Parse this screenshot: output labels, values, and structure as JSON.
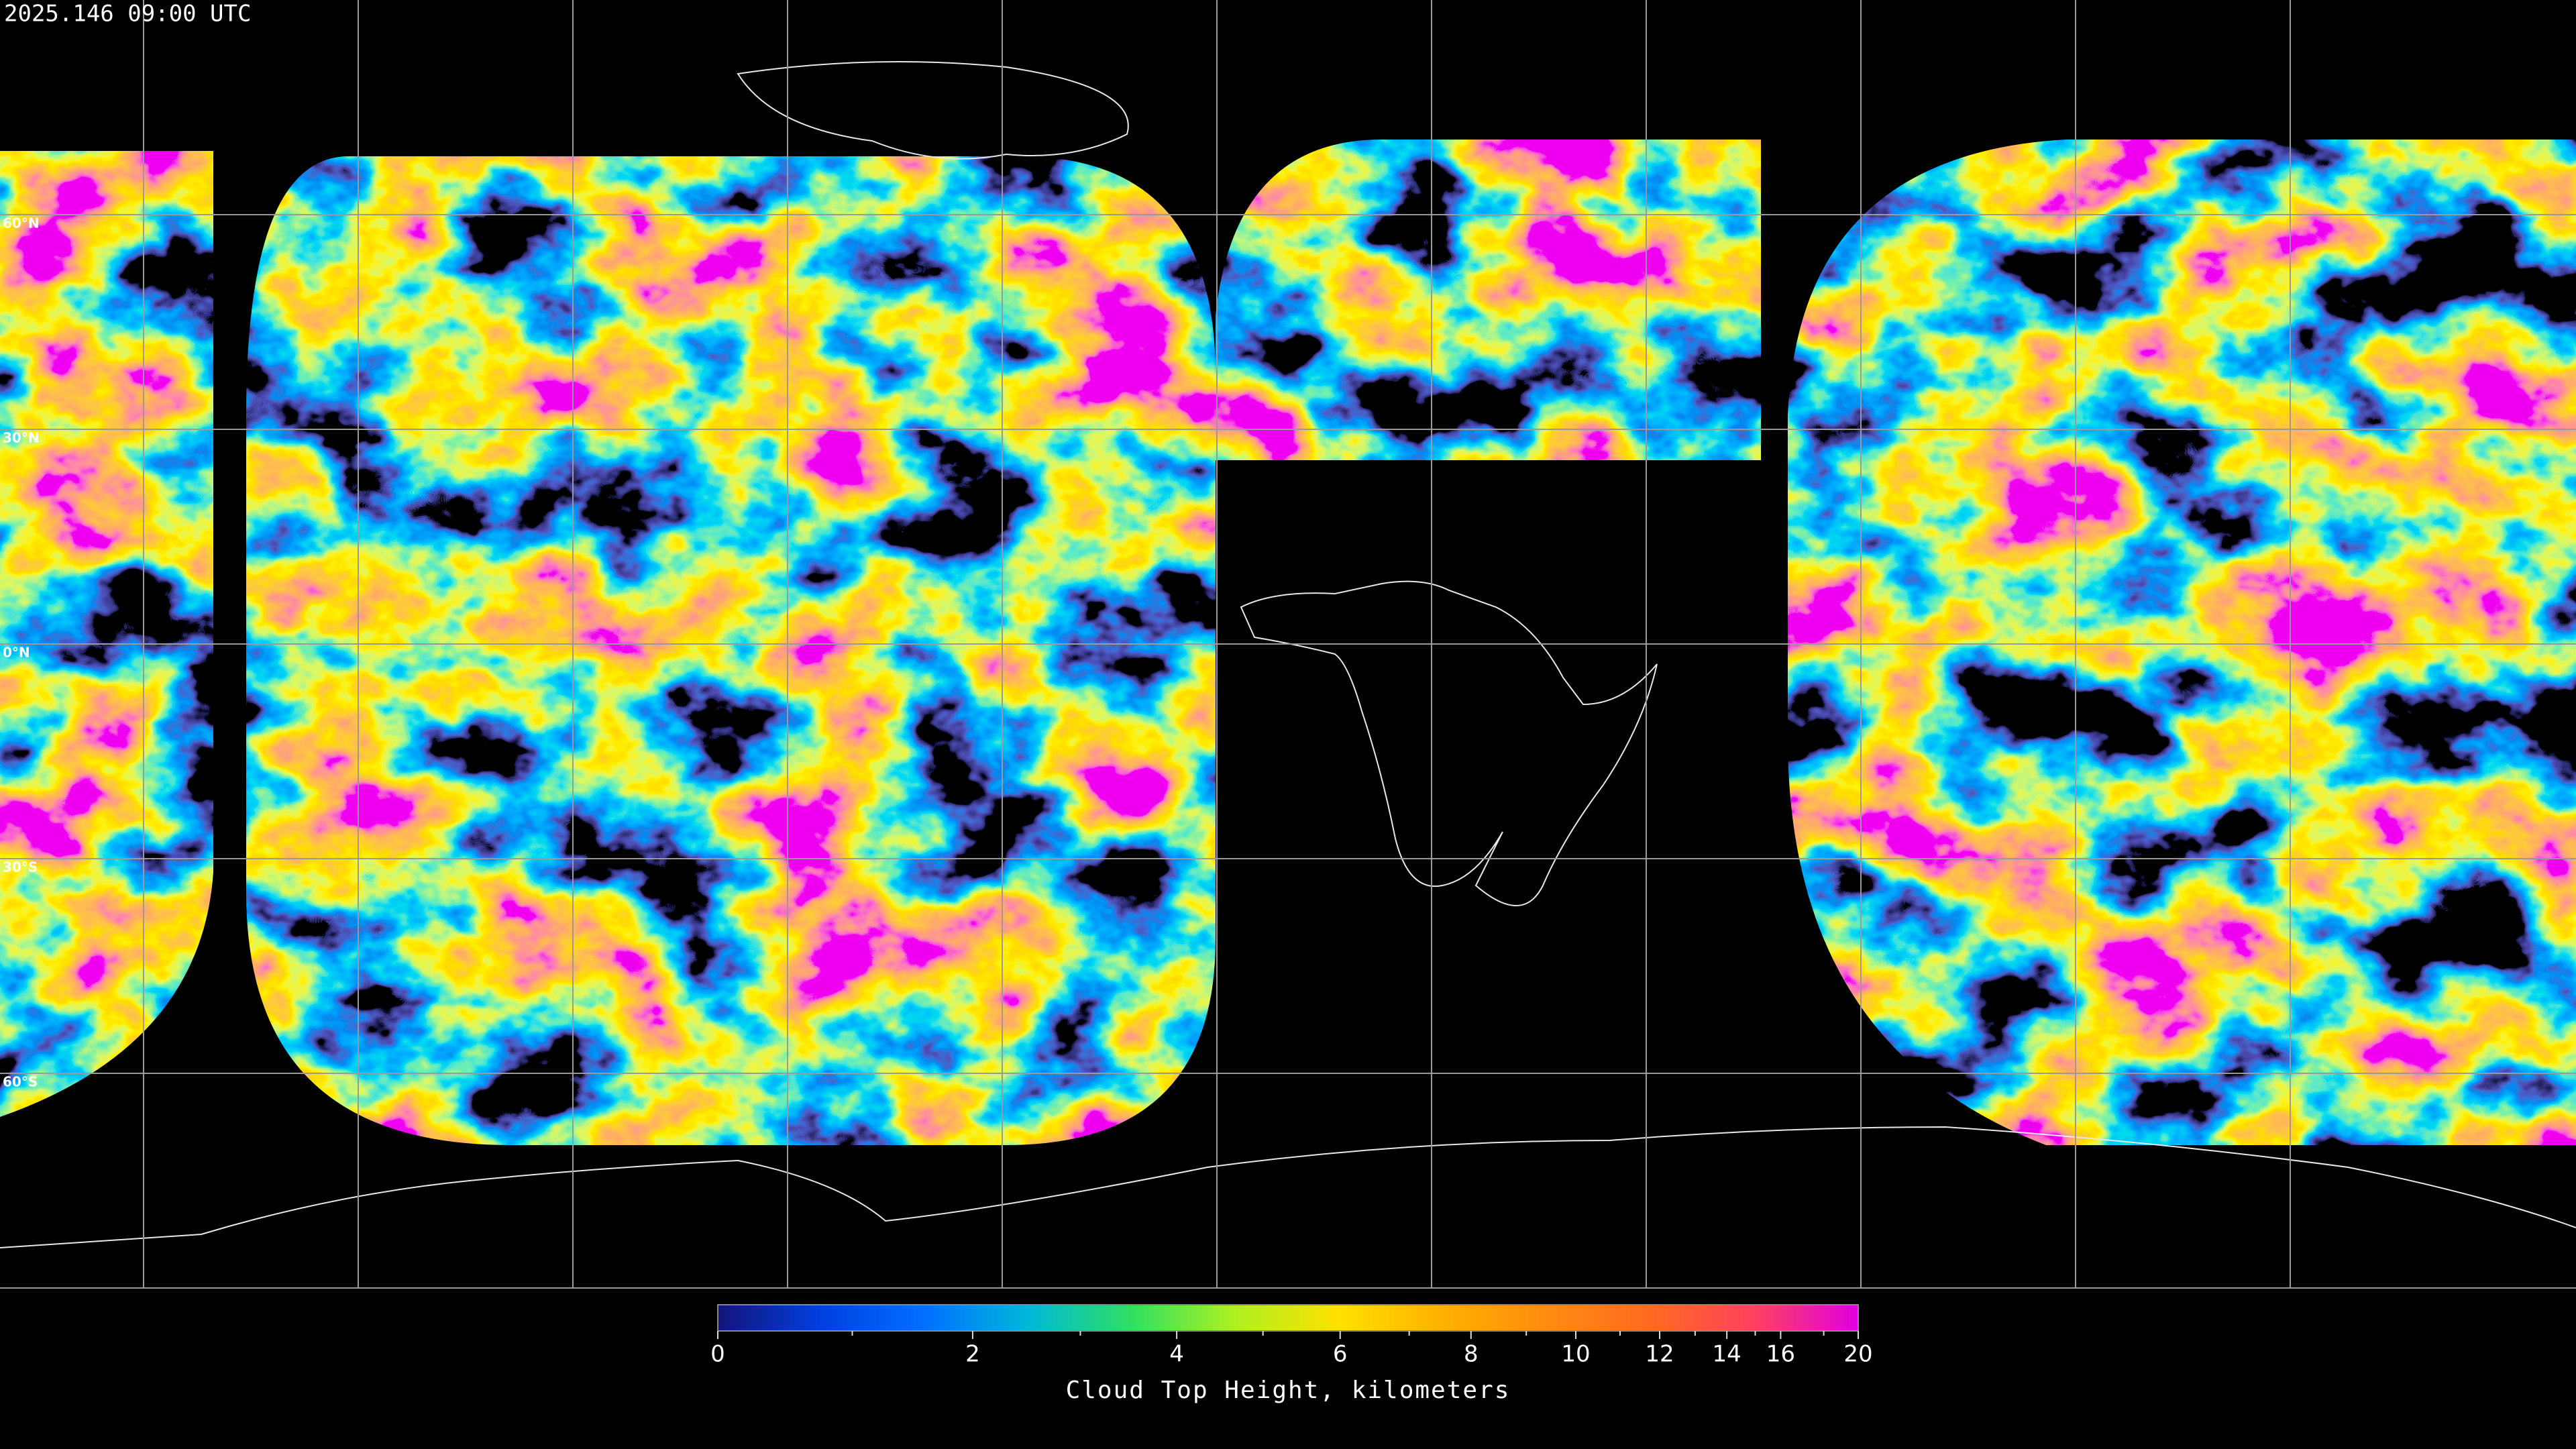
{
  "timestamp": "2025.146 09:00 UTC",
  "map": {
    "lat_ticks": [
      {
        "value": 60,
        "label": "60°N"
      },
      {
        "value": 30,
        "label": "30°N"
      },
      {
        "value": 0,
        "label": "0°N"
      },
      {
        "value": -30,
        "label": "30°S"
      },
      {
        "value": -60,
        "label": "60°S"
      }
    ]
  },
  "colorbar": {
    "label": "Cloud Top Height, kilometers",
    "lim": [
      0,
      20
    ],
    "ticks": [
      0,
      2,
      4,
      6,
      8,
      10,
      12,
      14,
      16,
      20
    ],
    "minor_ticks": [
      1,
      3,
      5,
      7,
      9,
      11,
      13,
      15,
      18
    ],
    "colors": [
      "#14147a",
      "#0040e0",
      "#0070ff",
      "#00b8d8",
      "#30e060",
      "#b0f020",
      "#ffe000",
      "#ffb000",
      "#ff8c10",
      "#ff6a20",
      "#ff4060",
      "#e000e0"
    ]
  }
}
